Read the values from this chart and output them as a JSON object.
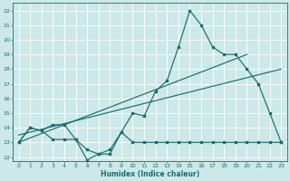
{
  "xlabel": "Humidex (Indice chaleur)",
  "xlim": [
    -0.5,
    23.5
  ],
  "ylim": [
    11.7,
    22.5
  ],
  "yticks": [
    12,
    13,
    14,
    15,
    16,
    17,
    18,
    19,
    20,
    21,
    22
  ],
  "xticks": [
    0,
    1,
    2,
    3,
    4,
    5,
    6,
    7,
    8,
    9,
    10,
    11,
    12,
    13,
    14,
    15,
    16,
    17,
    18,
    19,
    20,
    21,
    22,
    23
  ],
  "bg_color": "#cde8e8",
  "grid_color": "#b0d8d8",
  "line_color": "#1a6e6a",
  "line1_x": [
    0,
    1,
    2,
    3,
    4,
    5,
    6,
    7,
    8,
    9,
    10,
    11,
    12,
    13,
    14,
    15,
    16,
    17,
    18,
    19,
    20,
    21,
    22,
    23
  ],
  "line1_y": [
    13,
    14,
    13.8,
    13.2,
    13.2,
    13.2,
    11.8,
    12.2,
    12.2,
    13.7,
    13,
    13,
    13,
    13,
    13,
    13,
    13,
    13,
    13,
    13,
    13,
    13,
    13,
    13
  ],
  "line2_x": [
    0,
    1,
    2,
    3,
    4,
    5,
    6,
    7,
    8,
    9,
    10,
    11,
    12,
    13,
    14,
    15,
    16,
    17,
    18,
    19,
    20,
    21,
    22,
    23
  ],
  "line2_y": [
    13,
    14,
    13.8,
    14.2,
    14.2,
    13.2,
    12.5,
    12.2,
    12.5,
    13.7,
    15,
    14.8,
    16.5,
    17.2,
    19.5,
    22,
    21,
    19.5,
    19,
    19,
    18,
    17,
    15,
    13
  ],
  "line3_x": [
    0,
    20
  ],
  "line3_y": [
    13,
    19
  ],
  "line4_x": [
    0,
    23
  ],
  "line4_y": [
    13.5,
    18
  ]
}
